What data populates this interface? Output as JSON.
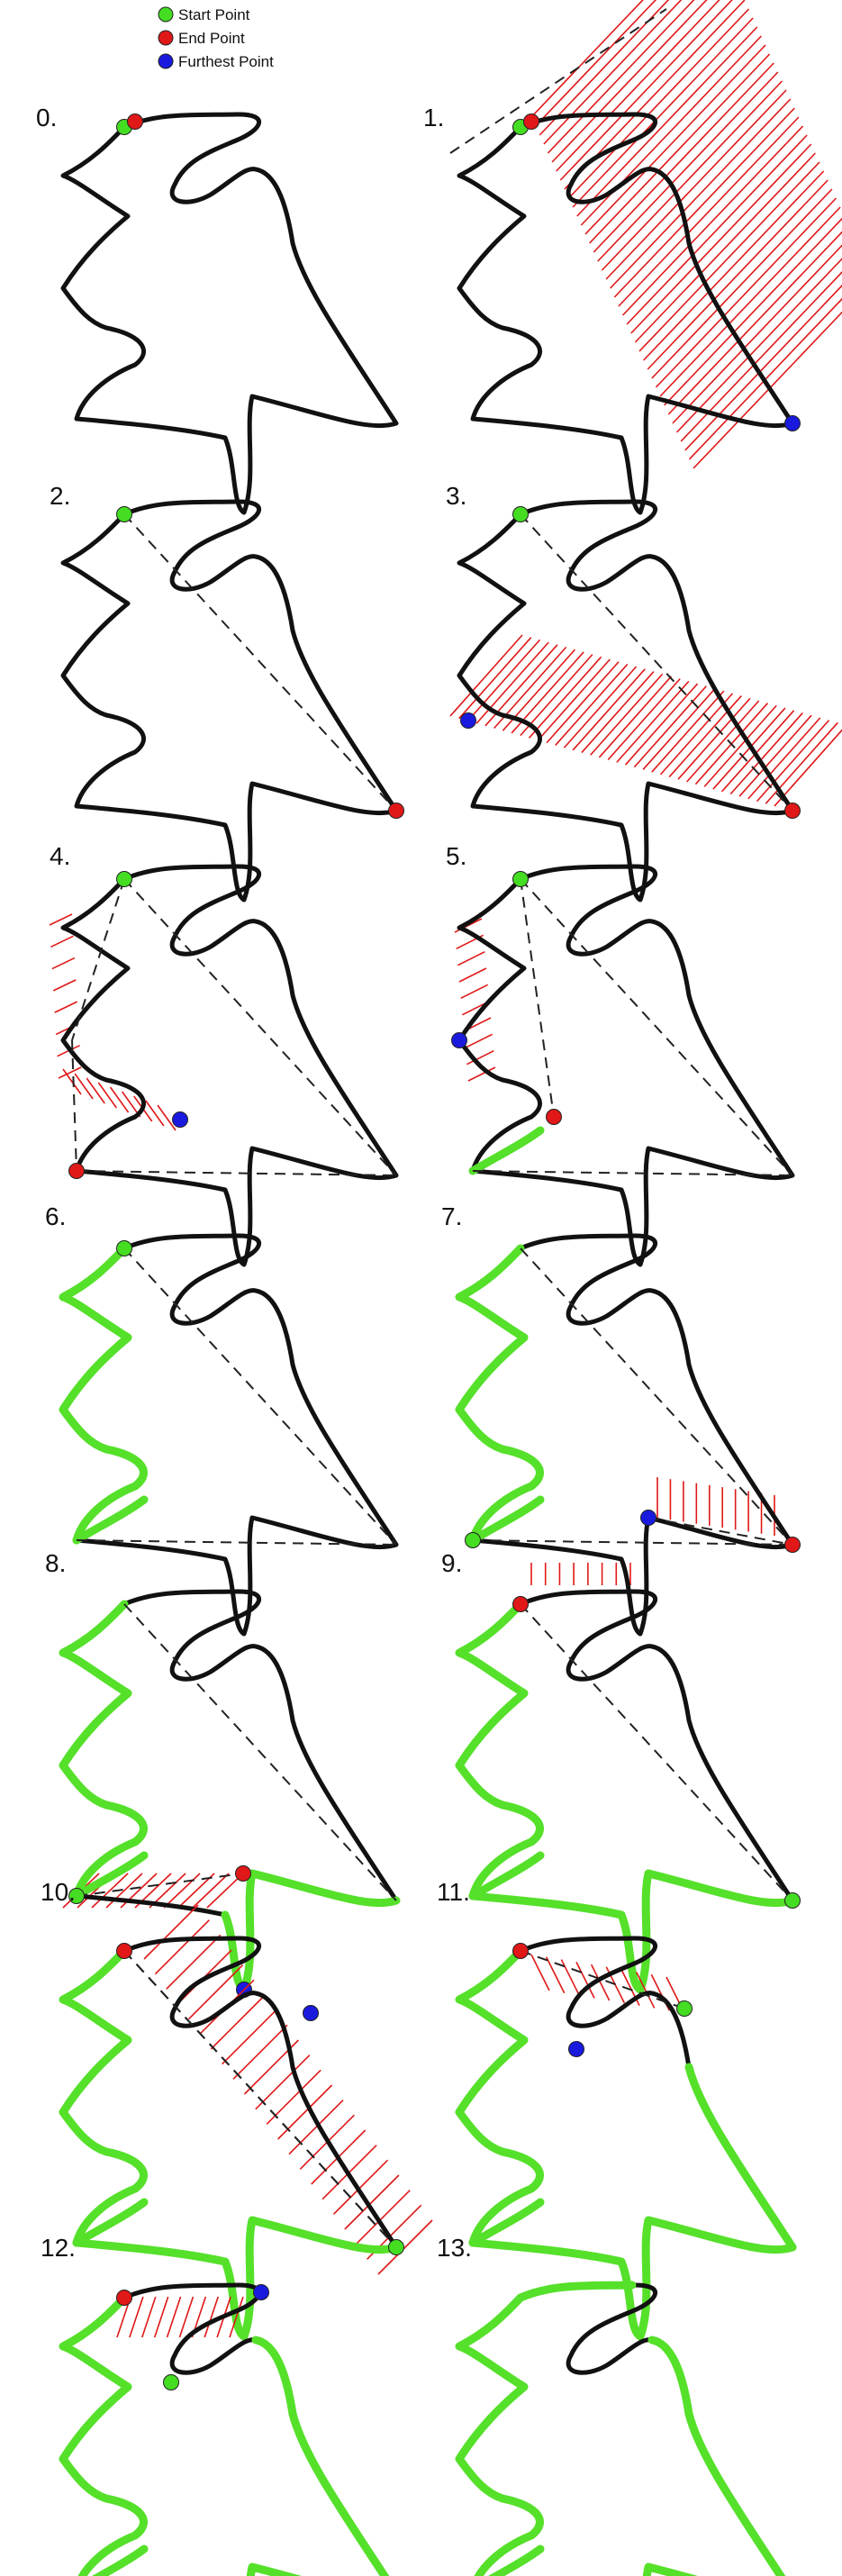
{
  "legend": {
    "items": [
      {
        "label": "Start Point",
        "color": "#44dd22"
      },
      {
        "label": "End Point",
        "color": "#e01818"
      },
      {
        "label": "Furthest Point",
        "color": "#1a1adf"
      }
    ]
  },
  "colors": {
    "outline": "#111111",
    "hatch": "#e01818",
    "accepted": "#55e02a",
    "start": "#44dd22",
    "end": "#e01818",
    "furthest": "#1a1adf"
  },
  "steps": [
    {
      "label": "0."
    },
    {
      "label": "1."
    },
    {
      "label": "2."
    },
    {
      "label": "3."
    },
    {
      "label": "4."
    },
    {
      "label": "5."
    },
    {
      "label": "6."
    },
    {
      "label": "7."
    },
    {
      "label": "8."
    },
    {
      "label": "9."
    },
    {
      "label": "10."
    },
    {
      "label": "11."
    },
    {
      "label": "12."
    },
    {
      "label": "13."
    }
  ]
}
